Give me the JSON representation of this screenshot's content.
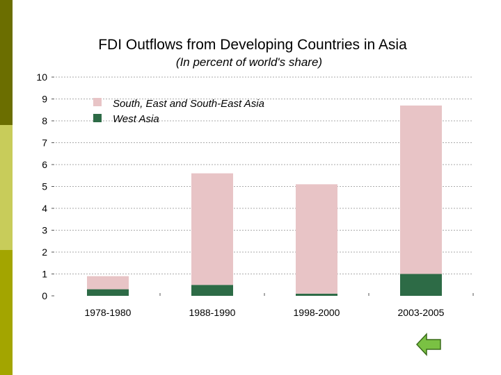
{
  "colors": {
    "side_bar_dark": "#6b6e00",
    "side_bar_light": "#c8cc5a",
    "side_bar_mid": "#a3a500",
    "series_south_east": "#e8c4c6",
    "series_west": "#2d6b46",
    "nav_arrow": "#7ac143"
  },
  "nav": {
    "back_icon": "left-arrow-icon"
  },
  "chart_data": {
    "type": "bar",
    "stacked": true,
    "title": "FDI Outflows from Developing Countries in Asia",
    "subtitle": "(In percent of world's share)",
    "categories": [
      "1978-1980",
      "1988-1990",
      "1998-2000",
      "2003-2005"
    ],
    "series": [
      {
        "name": "West Asia",
        "values": [
          0.3,
          0.5,
          0.1,
          1.0
        ]
      },
      {
        "name": "South, East and South-East Asia",
        "values": [
          0.6,
          5.1,
          5.0,
          7.7
        ]
      }
    ],
    "ylim": [
      0,
      10
    ],
    "yticks": [
      "0",
      "1",
      "2",
      "3",
      "4",
      "5",
      "6",
      "7",
      "8",
      "9",
      "10"
    ],
    "legend": {
      "placement": "top-left",
      "items": [
        "South, East and South-East Asia",
        "West Asia"
      ]
    },
    "grid": true
  }
}
